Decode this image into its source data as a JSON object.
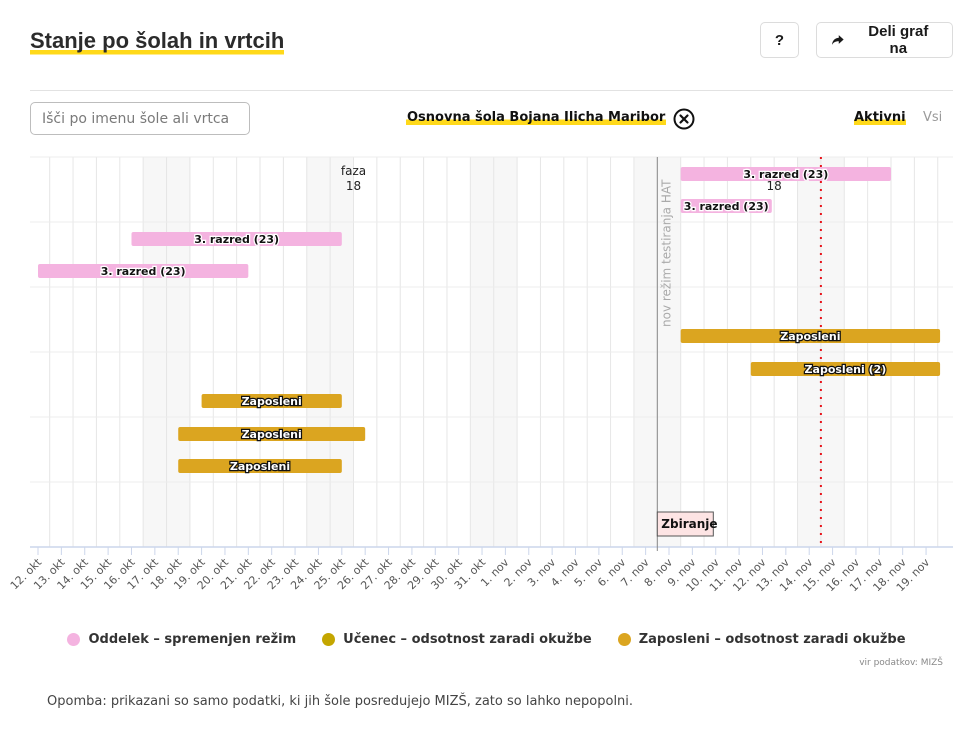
{
  "header": {
    "title": "Stanje po šolah in vrtcih",
    "help_label": "?",
    "share_label": "Deli graf na",
    "share_icon": "share-arrow-icon"
  },
  "filters": {
    "search_placeholder": "Išči po imenu šole ali vrtca",
    "search_value": "",
    "selected_school": "Osnovna šola Bojana Ilicha Maribor",
    "clear_icon": "close-circle-icon",
    "active_label": "Aktivni",
    "all_label": "Vsi",
    "active_selected": "Aktivni"
  },
  "colors": {
    "accent": "#ffd91a",
    "oddelek": "#f4b3e0",
    "ucenec": "#c4a600",
    "zaposleni": "#dba520",
    "today_line": "#e8141b",
    "event_line": "#888888",
    "weekend": "#f7f7f7",
    "grid": "#e6e6e6",
    "axis": "#ccd6eb"
  },
  "chart_data": {
    "type": "gantt",
    "title": "",
    "x_axis": {
      "type": "date",
      "range": [
        "12. okt",
        "19. nov"
      ],
      "tick_labels": [
        "12. okt",
        "13. okt",
        "14. okt",
        "15. okt",
        "16. okt",
        "17. okt",
        "18. okt",
        "19. okt",
        "20. okt",
        "21. okt",
        "22. okt",
        "23. okt",
        "24. okt",
        "25. okt",
        "26. okt",
        "27. okt",
        "28. okt",
        "29. okt",
        "30. okt",
        "31. okt",
        "1. nov",
        "2. nov",
        "3. nov",
        "4. nov",
        "5. nov",
        "6. nov",
        "7. nov",
        "8. nov",
        "9. nov",
        "10. nov",
        "11. nov",
        "12. nov",
        "13. nov",
        "14. nov",
        "15. nov",
        "16. nov",
        "17. nov",
        "18. nov",
        "19. nov"
      ]
    },
    "weekends": [
      [
        4,
        6
      ],
      [
        11,
        13
      ],
      [
        18,
        20
      ],
      [
        25,
        27
      ],
      [
        32,
        34
      ]
    ],
    "rows": 6,
    "bars": [
      {
        "row": 0,
        "lane": 0,
        "start": 27.5,
        "end": 36.5,
        "category": "oddelek",
        "label": "3. razred (23)"
      },
      {
        "row": 0,
        "lane": 1,
        "start": 27.5,
        "end": 31.4,
        "category": "oddelek",
        "label": "3. razred (23)"
      },
      {
        "row": 1,
        "lane": 0,
        "start": 4.0,
        "end": 13.0,
        "category": "oddelek",
        "label": "3. razred (23)"
      },
      {
        "row": 1,
        "lane": 1,
        "start": 0.0,
        "end": 9.0,
        "category": "oddelek",
        "label": "3. razred (23)"
      },
      {
        "row": 2,
        "lane": 1,
        "start": 27.5,
        "end": 38.6,
        "category": "zaposleni",
        "label": "Zaposleni"
      },
      {
        "row": 3,
        "lane": 0,
        "start": 30.5,
        "end": 38.6,
        "category": "zaposleni",
        "label": "Zaposleni (2)"
      },
      {
        "row": 3,
        "lane": 1,
        "start": 7.0,
        "end": 13.0,
        "category": "zaposleni",
        "label": "Zaposleni"
      },
      {
        "row": 4,
        "lane": 0,
        "start": 6.0,
        "end": 14.0,
        "category": "zaposleni",
        "label": "Zaposleni"
      },
      {
        "row": 4,
        "lane": 1,
        "start": 6.0,
        "end": 13.0,
        "category": "zaposleni",
        "label": "Zaposleni"
      }
    ],
    "annotations": [
      {
        "type": "text",
        "day": 13.5,
        "text_lines": [
          "faza",
          "18"
        ],
        "row": 0
      },
      {
        "type": "text",
        "day": 31.5,
        "text_lines": [
          "18"
        ],
        "row": 0
      },
      {
        "type": "vertical-line",
        "day": 27,
        "label": "nov režim testiranja HAT",
        "style": "solid"
      },
      {
        "type": "vertical-line",
        "day": 34,
        "label": "",
        "style": "dotted-red"
      },
      {
        "type": "flag",
        "day": 27,
        "label": "Zbiranje",
        "row": 5
      }
    ],
    "legend": [
      {
        "category": "oddelek",
        "label": "Oddelek – spremenjen režim"
      },
      {
        "category": "ucenec",
        "label": "Učenec – odsotnost zaradi okužbe"
      },
      {
        "category": "zaposleni",
        "label": "Zaposleni – odsotnost zaradi okužbe"
      }
    ],
    "legend_position": "bottom-center"
  },
  "footer": {
    "source": "vir podatkov: MIZŠ",
    "note": "Opomba: prikazani so samo podatki, ki jih šole posredujejo MIZŠ, zato so lahko nepopolni."
  }
}
